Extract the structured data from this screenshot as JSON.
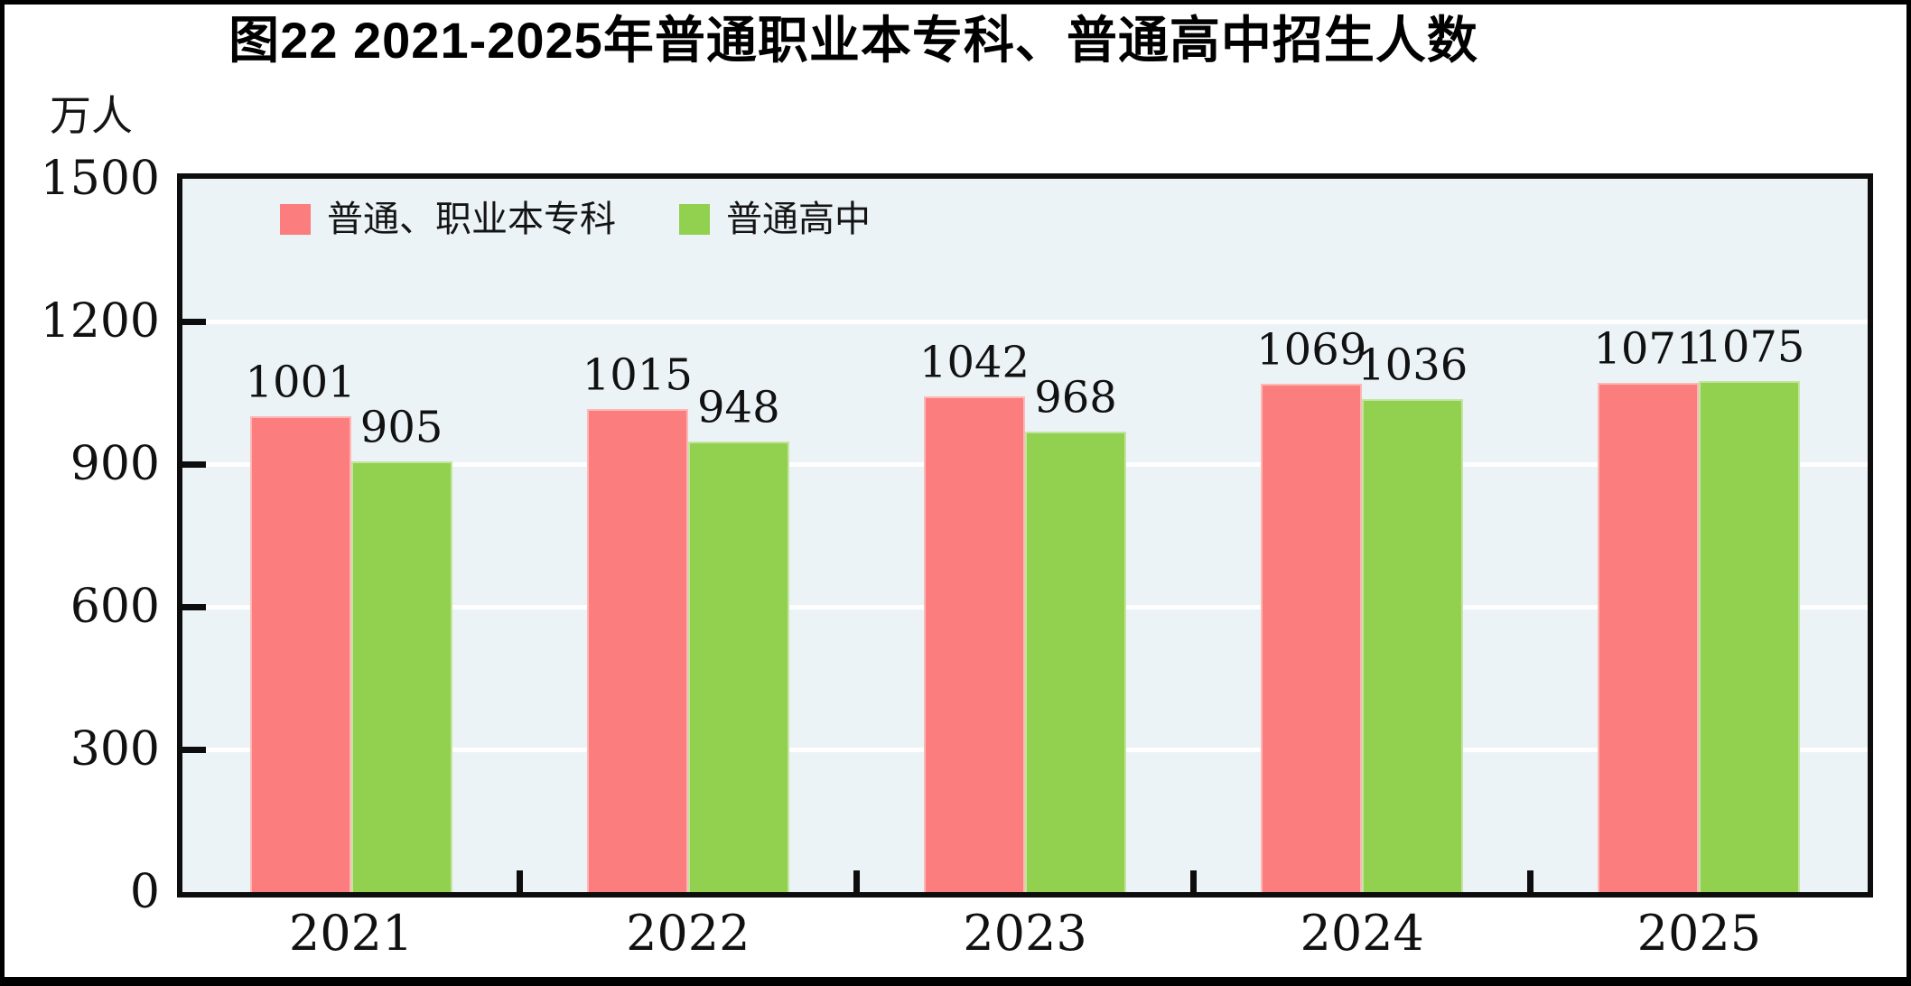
{
  "title": "图22  2021-2025年普通职业本专科、普通高中招生人数",
  "unit_label": "万人",
  "colors": {
    "series1": "#FB7D7D",
    "series2": "#92D050",
    "plot_bg": "#ECF3F7",
    "axis": "#0D0D0D",
    "gridline": "#FFFFFF",
    "text": "#111111"
  },
  "chart_data": {
    "type": "bar",
    "categories": [
      "2021",
      "2022",
      "2023",
      "2024",
      "2025"
    ],
    "series": [
      {
        "name": "普通、职业本专科",
        "color_key": "series1",
        "values": [
          1001,
          1015,
          1042,
          1069,
          1071
        ]
      },
      {
        "name": "普通高中",
        "color_key": "series2",
        "values": [
          905,
          948,
          968,
          1036,
          1075
        ]
      }
    ],
    "title": "图22  2021-2025年普通职业本专科、普通高中招生人数",
    "xlabel": "",
    "ylabel": "万人",
    "ylim": [
      0,
      1500
    ],
    "yticks": [
      0,
      300,
      600,
      900,
      1200,
      1500
    ],
    "grid": true,
    "legend_position": "top-left-inside"
  }
}
